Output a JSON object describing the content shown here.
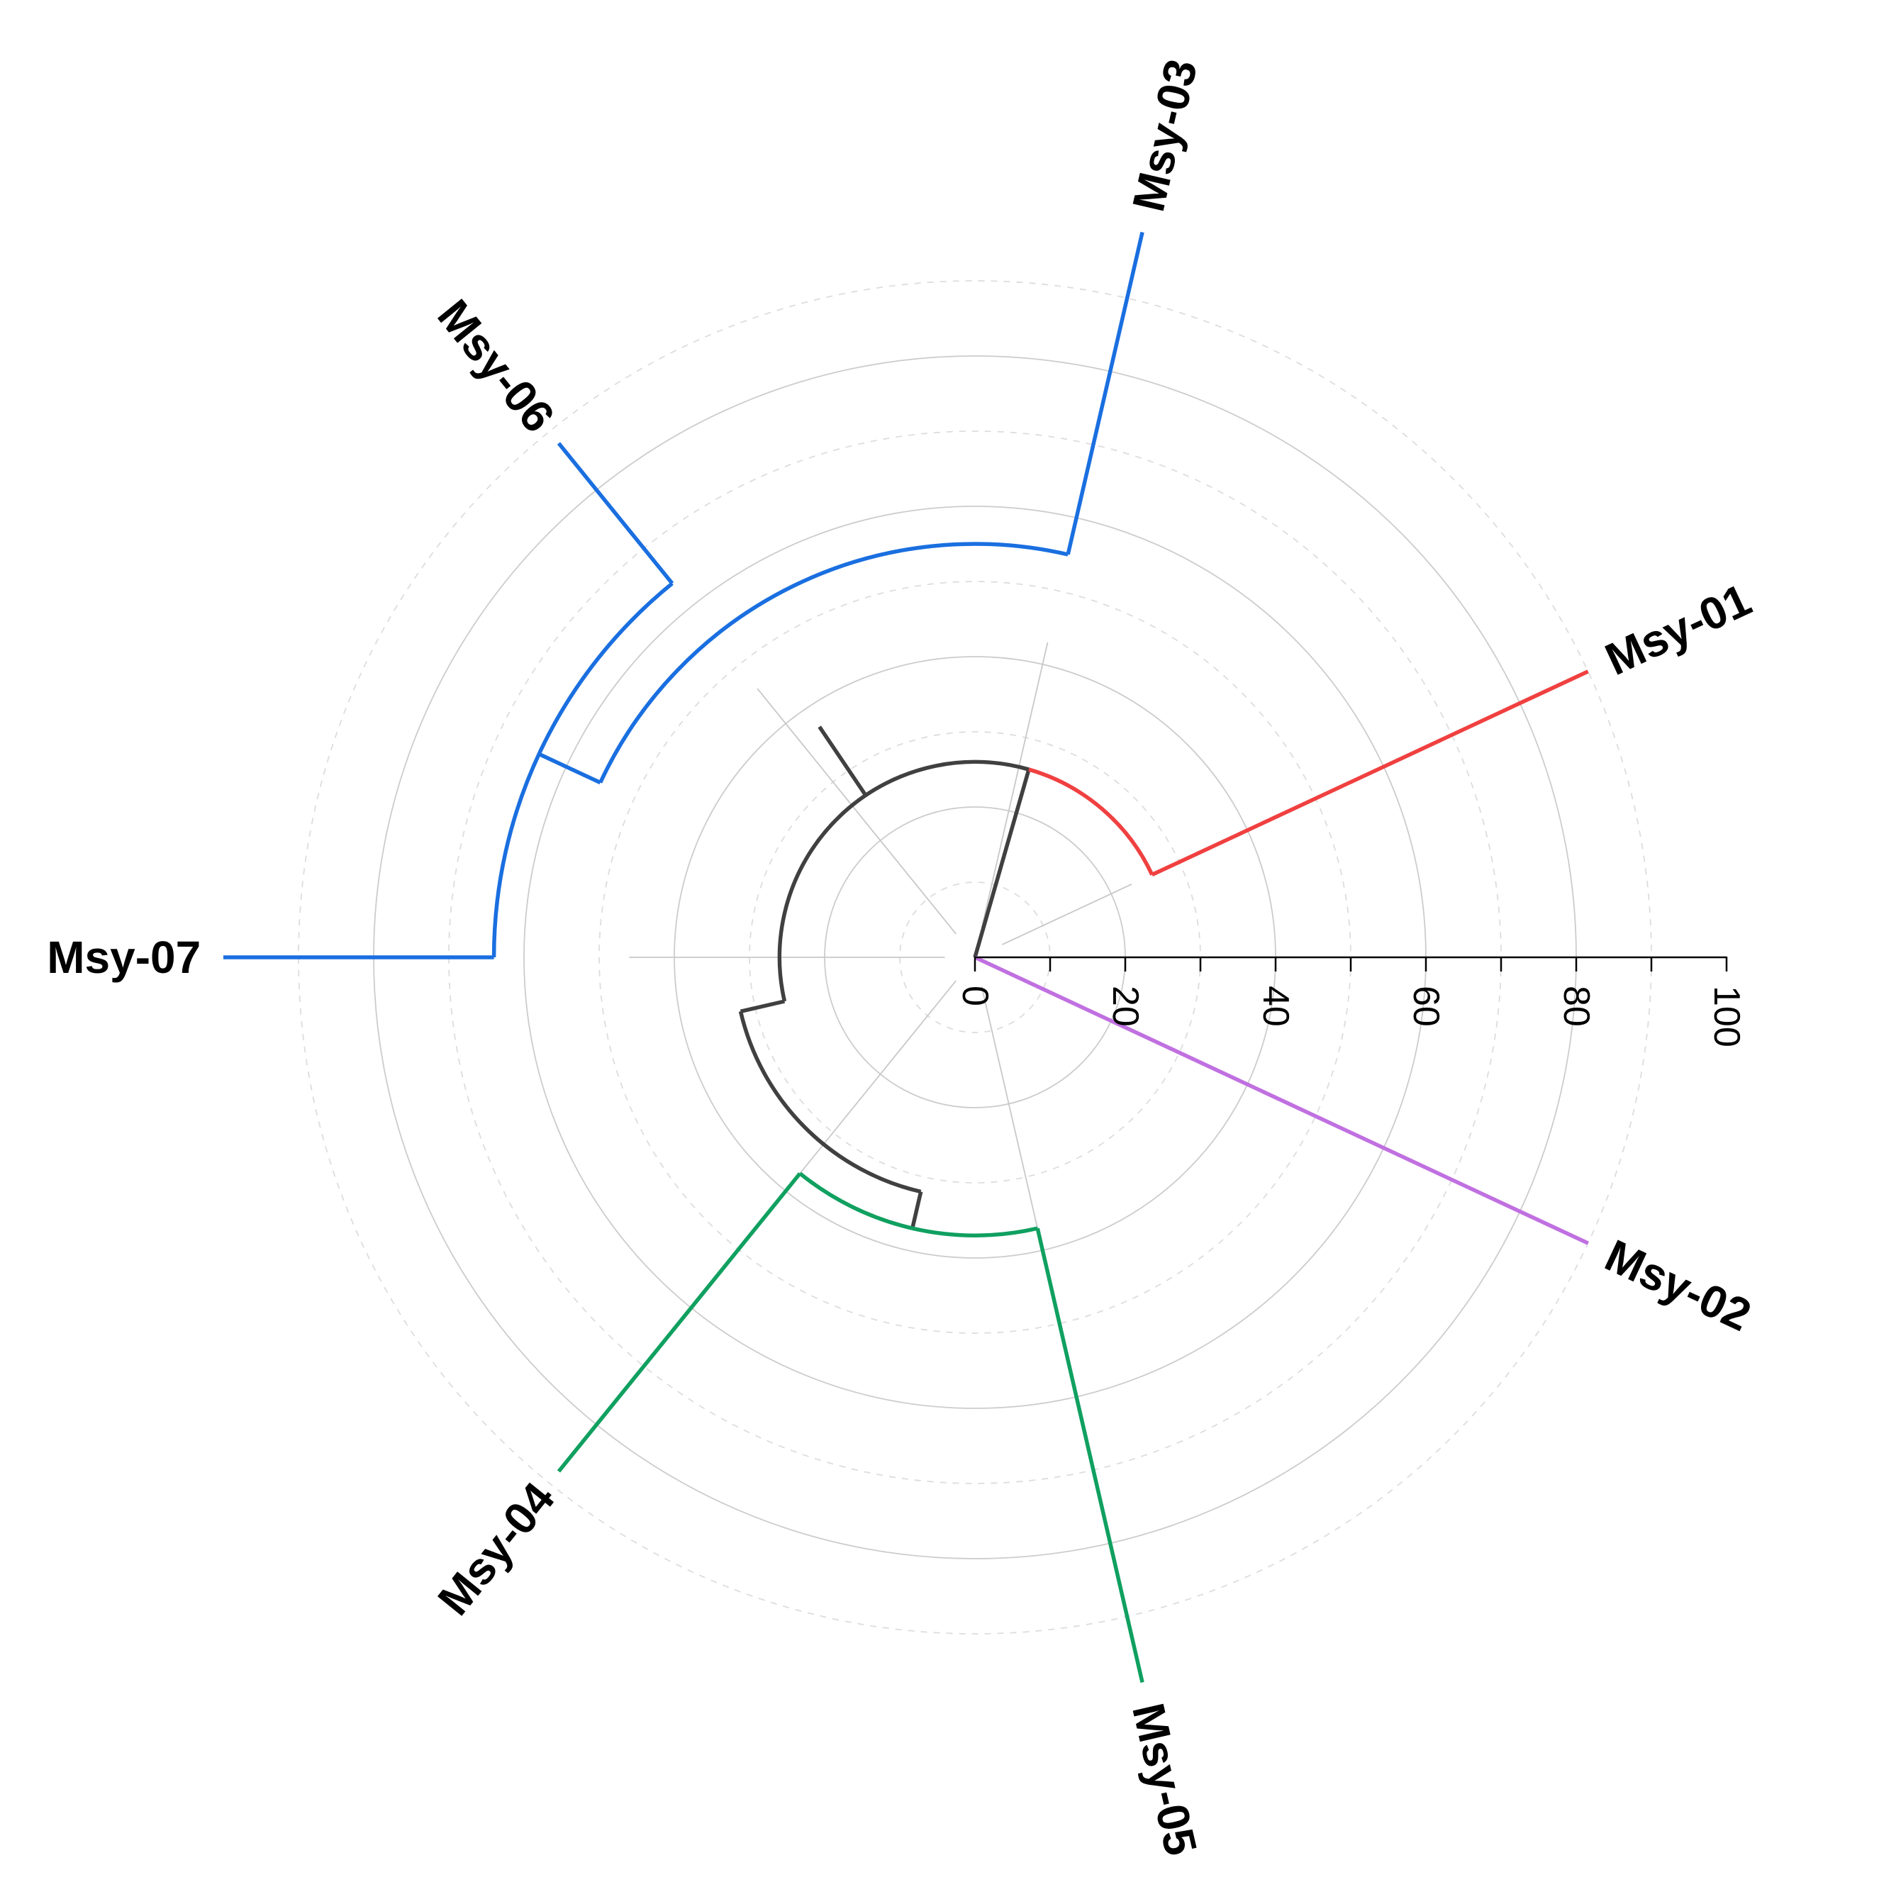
{
  "chart_data": {
    "type": "circular-dendrogram",
    "colors": {
      "cluster_a": "#f04040",
      "cluster_b": "#c070e0",
      "cluster_c": "#1a6fe0",
      "cluster_d": "#10a060",
      "internal": "#404040",
      "grid": "#cccccc"
    },
    "leaves": [
      {
        "label": "Msy-01",
        "color": "#f04040",
        "angle": 335
      },
      {
        "label": "Msy-02",
        "color": "#c070e0",
        "angle": 25
      },
      {
        "label": "Msy-05",
        "color": "#10a060",
        "angle": 77
      },
      {
        "label": "Msy-04",
        "color": "#10a060",
        "angle": 129
      },
      {
        "label": "Msy-07",
        "color": "#1a6fe0",
        "angle": 180
      },
      {
        "label": "Msy-06",
        "color": "#1a6fe0",
        "angle": 231
      },
      {
        "label": "Msy-03",
        "color": "#1a6fe0",
        "angle": 283
      }
    ],
    "radial_axis": {
      "ticks": [
        "0",
        "20",
        "40",
        "60",
        "80",
        "100"
      ],
      "minor_ticks": [
        10,
        30,
        50,
        70,
        90
      ],
      "range": [
        0,
        100
      ]
    }
  }
}
